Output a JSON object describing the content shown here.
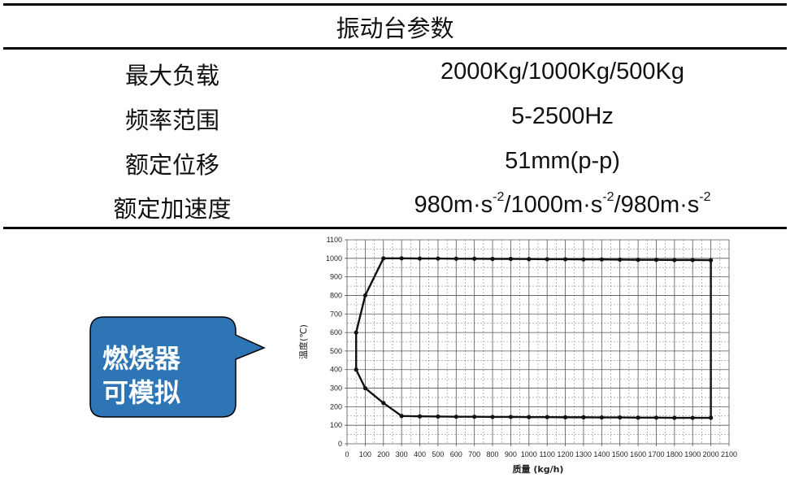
{
  "table": {
    "title": "振动台参数",
    "rows": [
      {
        "label": "最大负载",
        "value": [
          {
            "t": "2000Kg/1000Kg/500Kg"
          }
        ]
      },
      {
        "label": "频率范围",
        "value": [
          {
            "t": "5-2500Hz"
          }
        ]
      },
      {
        "label": "额定位移",
        "value": [
          {
            "t": "51mm(p-p)"
          }
        ]
      },
      {
        "label": "额定加速度",
        "value": [
          {
            "t": "980m·s"
          },
          {
            "sup": "-2"
          },
          {
            "t": "/1000m·s"
          },
          {
            "sup": "-2"
          },
          {
            "t": "/980m·s"
          },
          {
            "sup": "-2"
          }
        ]
      }
    ]
  },
  "callout": {
    "lines": [
      "燃烧器",
      "可模拟"
    ],
    "fill": "#2E75B6"
  },
  "chart_data": {
    "type": "line",
    "title": "",
    "xlabel": "质量 (kg/h)",
    "ylabel": "温度(℃)",
    "xlim": [
      0,
      2100
    ],
    "ylim": [
      0,
      1100
    ],
    "xticks": [
      0,
      100,
      200,
      300,
      400,
      500,
      600,
      700,
      800,
      900,
      1000,
      1100,
      1200,
      1300,
      1400,
      1500,
      1600,
      1700,
      1800,
      1900,
      2000,
      2100
    ],
    "yticks": [
      0,
      100,
      200,
      300,
      400,
      500,
      600,
      700,
      800,
      900,
      1000,
      1100
    ],
    "grid": true,
    "series": [
      {
        "closed": true,
        "points": [
          [
            50,
            600
          ],
          [
            100,
            800
          ],
          [
            200,
            1000
          ],
          [
            300,
            1000
          ],
          [
            400,
            999
          ],
          [
            500,
            999
          ],
          [
            600,
            998
          ],
          [
            700,
            998
          ],
          [
            800,
            997
          ],
          [
            900,
            997
          ],
          [
            1000,
            996
          ],
          [
            1100,
            995
          ],
          [
            1200,
            995
          ],
          [
            1300,
            994
          ],
          [
            1400,
            994
          ],
          [
            1500,
            993
          ],
          [
            1600,
            992
          ],
          [
            1700,
            992
          ],
          [
            1800,
            991
          ],
          [
            1900,
            991
          ],
          [
            2000,
            990
          ],
          [
            2000,
            140
          ],
          [
            1900,
            140
          ],
          [
            1800,
            140
          ],
          [
            1700,
            141
          ],
          [
            1600,
            141
          ],
          [
            1500,
            142
          ],
          [
            1400,
            142
          ],
          [
            1300,
            143
          ],
          [
            1200,
            143
          ],
          [
            1100,
            144
          ],
          [
            1000,
            144
          ],
          [
            900,
            145
          ],
          [
            800,
            145
          ],
          [
            700,
            146
          ],
          [
            600,
            146
          ],
          [
            500,
            147
          ],
          [
            400,
            148
          ],
          [
            300,
            150
          ],
          [
            200,
            220
          ],
          [
            100,
            300
          ],
          [
            50,
            400
          ]
        ]
      }
    ]
  }
}
